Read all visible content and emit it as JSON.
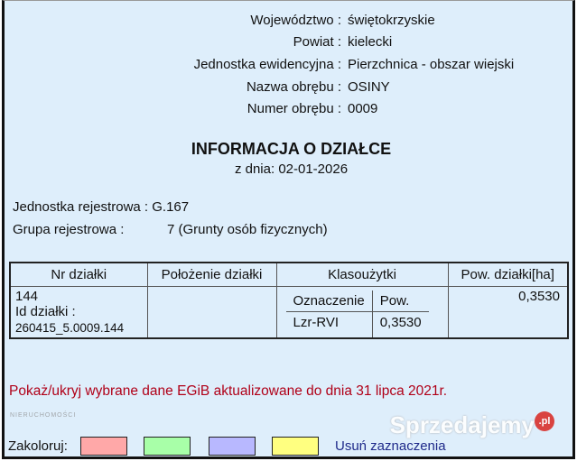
{
  "header": [
    {
      "label": "Województwo :",
      "value": "świętokrzyskie"
    },
    {
      "label": "Powiat :",
      "value": "kielecki"
    },
    {
      "label": "Jednostka ewidencyjna :",
      "value": "Pierzchnica - obszar wiejski"
    },
    {
      "label": "Nazwa obrębu :",
      "value": "OSINY"
    },
    {
      "label": "Numer obrębu :",
      "value": "0009"
    }
  ],
  "title": "INFORMACJA O DZIAŁCE",
  "subtitle": "z dnia: 02-01-2026",
  "registry": {
    "unit_label": "Jednostka rejestrowa :",
    "unit_value": "G.167",
    "group_label": "Grupa rejestrowa :",
    "group_value": "7 (Grunty osób fizycznych)"
  },
  "table": {
    "headers": [
      "Nr działki",
      "Położenie działki",
      "Klasoużytki",
      "Pow. działki[ha]"
    ],
    "row": {
      "nr": "144",
      "id_label": "Id działki :",
      "id": "260415_5.0009.144",
      "location": "",
      "class_headers": [
        "Oznaczenie",
        "Pow."
      ],
      "class_rows": [
        [
          "Lzr-RVI",
          "0,3530"
        ]
      ],
      "area": "0,3530"
    }
  },
  "toggle_link": "Pokaż/ukryj wybrane dane EGiB aktualizowane do dnia 31 lipca 2021r.",
  "colorize": {
    "label": "Zakoloruj:",
    "swatches": [
      "#ffa8a8",
      "#a8ffa8",
      "#b8b8ff",
      "#ffff80"
    ],
    "clear": "Usuń zaznaczenia"
  },
  "watermarks": {
    "left": "NIERUCHOMOŚCI TWOJE M",
    "right": "Sprzedajemy",
    ".pl": ".pl"
  }
}
